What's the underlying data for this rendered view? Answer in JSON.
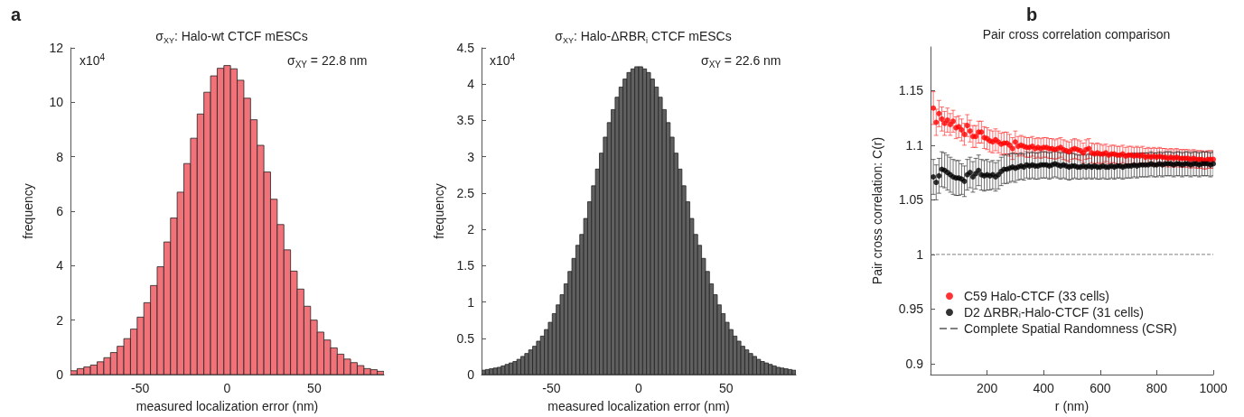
{
  "chart_data": [
    {
      "type": "histogram",
      "title": "σ$_{XY}$: Halo-wt CTCF mESCs",
      "xlabel": "measured localization error (nm)",
      "ylabel": "frequency",
      "color": "#f2727a",
      "annotations": [
        "a",
        "x10$^{4}$",
        "σ$_{XY}$ = 22.8 nm"
      ],
      "bins": [
        -90,
        -86.17,
        -82.34,
        -78.51,
        -74.68,
        -70.85,
        -67.02,
        -63.19,
        -59.36,
        -55.53,
        -51.7,
        -47.87,
        -44.04,
        -40.21,
        -36.38,
        -32.55,
        -28.72,
        -24.89,
        -21.06,
        -17.23,
        -13.4,
        -9.57,
        -5.74,
        -1.91,
        1.91,
        5.74,
        9.57,
        13.4,
        17.23,
        21.06,
        24.89,
        28.72,
        32.55,
        36.38,
        40.21,
        44.04,
        47.87,
        51.7,
        55.53,
        59.36,
        63.19,
        67.02,
        70.85,
        74.68,
        78.51,
        82.34,
        86.17,
        90
      ],
      "values": [
        0.14,
        0.22,
        0.28,
        0.35,
        0.47,
        0.62,
        0.81,
        1.04,
        1.32,
        1.67,
        2.11,
        2.64,
        3.27,
        3.96,
        4.87,
        5.75,
        6.7,
        7.75,
        8.68,
        9.57,
        10.37,
        10.97,
        11.25,
        11.35,
        11.23,
        10.81,
        10.15,
        9.36,
        8.42,
        7.44,
        6.44,
        5.51,
        4.58,
        3.8,
        3.14,
        2.51,
        2.0,
        1.56,
        1.27,
        0.98,
        0.75,
        0.57,
        0.44,
        0.33,
        0.22,
        0.18,
        0.12
      ],
      "xlim": [
        -90,
        90
      ],
      "xticks": [
        -50,
        0,
        50
      ],
      "ylim": [
        0,
        12
      ],
      "yticks": [
        0,
        2,
        4,
        6,
        8,
        10,
        12
      ],
      "grid": false
    },
    {
      "type": "histogram",
      "title": "σ$_{XY}$: Halo-ΔRBR$_{i}$ CTCF mESCs",
      "xlabel": "measured localization error (nm)",
      "ylabel": "frequency",
      "color": "#606060",
      "annotations": [
        "x10$^{4}$",
        "σ$_{XY}$ = 22.6 nm"
      ],
      "bins": [
        -90,
        -87.75,
        -85.5,
        -83.25,
        -81,
        -78.75,
        -76.5,
        -74.25,
        -72,
        -69.75,
        -67.5,
        -65.25,
        -63,
        -60.75,
        -58.5,
        -56.25,
        -54,
        -51.75,
        -49.5,
        -47.25,
        -45,
        -42.75,
        -40.5,
        -38.25,
        -36,
        -33.75,
        -31.5,
        -29.25,
        -27,
        -24.75,
        -22.5,
        -20.25,
        -18,
        -15.75,
        -13.5,
        -11.25,
        -9,
        -6.75,
        -4.5,
        -2.25,
        0,
        2.25,
        4.5,
        6.75,
        9,
        11.25,
        13.5,
        15.75,
        18,
        20.25,
        22.5,
        24.75,
        27,
        29.25,
        31.5,
        33.75,
        36,
        38.25,
        40.5,
        42.75,
        45,
        47.25,
        49.5,
        51.75,
        54,
        56.25,
        58.5,
        60.75,
        63,
        65.25,
        67.5,
        69.75,
        72,
        74.25,
        76.5,
        78.75,
        81,
        83.25,
        85.5,
        87.75,
        90
      ],
      "values": [
        0.06,
        0.07,
        0.08,
        0.09,
        0.1,
        0.12,
        0.14,
        0.16,
        0.18,
        0.21,
        0.25,
        0.29,
        0.34,
        0.39,
        0.46,
        0.53,
        0.62,
        0.72,
        0.84,
        0.96,
        1.1,
        1.25,
        1.42,
        1.6,
        1.78,
        1.93,
        2.15,
        2.38,
        2.6,
        2.83,
        3.05,
        3.27,
        3.47,
        3.65,
        3.82,
        3.96,
        4.07,
        4.16,
        4.21,
        4.24,
        4.24,
        4.21,
        4.16,
        4.07,
        3.96,
        3.82,
        3.65,
        3.47,
        3.27,
        3.05,
        2.83,
        2.6,
        2.38,
        2.15,
        1.93,
        1.78,
        1.6,
        1.42,
        1.25,
        1.1,
        0.96,
        0.84,
        0.72,
        0.62,
        0.53,
        0.46,
        0.39,
        0.34,
        0.29,
        0.25,
        0.21,
        0.18,
        0.16,
        0.14,
        0.12,
        0.1,
        0.09,
        0.08,
        0.07,
        0.06
      ],
      "xlim": [
        -90,
        90
      ],
      "xticks": [
        -50,
        0,
        50
      ],
      "ylim": [
        0,
        4.5
      ],
      "yticks": [
        0,
        0.5,
        1,
        1.5,
        2,
        2.5,
        3,
        3.5,
        4,
        4.5
      ],
      "grid": false
    },
    {
      "type": "scatter",
      "title": "Pair cross correlation comparison",
      "xlabel": "r (nm)",
      "ylabel": "Pair cross correlation: C(r)",
      "annotations": [
        "b"
      ],
      "marker": "circle",
      "legend": "bottom left",
      "grid": false,
      "x": [
        10,
        20,
        30,
        40,
        50,
        60,
        70,
        80,
        90,
        100,
        110,
        120,
        130,
        140,
        150,
        160,
        170,
        180,
        190,
        200,
        210,
        220,
        230,
        240,
        250,
        260,
        270,
        280,
        290,
        300,
        310,
        320,
        330,
        340,
        350,
        360,
        370,
        380,
        390,
        400,
        410,
        420,
        430,
        440,
        450,
        460,
        470,
        480,
        490,
        500,
        510,
        520,
        530,
        540,
        550,
        560,
        570,
        580,
        590,
        600,
        610,
        620,
        630,
        640,
        650,
        660,
        670,
        680,
        690,
        700,
        710,
        720,
        730,
        740,
        750,
        760,
        770,
        780,
        790,
        800,
        810,
        820,
        830,
        840,
        850,
        860,
        870,
        880,
        890,
        900,
        910,
        920,
        930,
        940,
        950,
        960,
        970,
        980,
        990,
        1000
      ],
      "series": [
        {
          "name": "C59 Halo-CTCF (33 cells)",
          "color": "#ff0000",
          "values": [
            1.134,
            1.121,
            1.129,
            1.124,
            1.12,
            1.123,
            1.119,
            1.122,
            1.116,
            1.117,
            1.114,
            1.11,
            1.118,
            1.113,
            1.108,
            1.108,
            1.112,
            1.112,
            1.107,
            1.106,
            1.104,
            1.103,
            1.105,
            1.103,
            1.101,
            1.102,
            1.102,
            1.1,
            1.097,
            1.103,
            1.099,
            1.1,
            1.099,
            1.098,
            1.098,
            1.099,
            1.097,
            1.098,
            1.097,
            1.098,
            1.098,
            1.097,
            1.097,
            1.096,
            1.097,
            1.098,
            1.096,
            1.095,
            1.094,
            1.096,
            1.097,
            1.096,
            1.095,
            1.093,
            1.096,
            1.097,
            1.093,
            1.092,
            1.093,
            1.092,
            1.092,
            1.093,
            1.091,
            1.092,
            1.092,
            1.091,
            1.091,
            1.092,
            1.09,
            1.091,
            1.091,
            1.09,
            1.091,
            1.09,
            1.091,
            1.089,
            1.09,
            1.089,
            1.09,
            1.089,
            1.09,
            1.089,
            1.089,
            1.088,
            1.089,
            1.088,
            1.089,
            1.088,
            1.088,
            1.088,
            1.088,
            1.087,
            1.088,
            1.087,
            1.087,
            1.087,
            1.086,
            1.087,
            1.087,
            1.087
          ],
          "errors": [
            0.015,
            0.012,
            0.012,
            0.011,
            0.011,
            0.011,
            0.01,
            0.01,
            0.01,
            0.01,
            0.01,
            0.01,
            0.01,
            0.01,
            0.01,
            0.01,
            0.01,
            0.01,
            0.01,
            0.01,
            0.01,
            0.01,
            0.01,
            0.01,
            0.01,
            0.01,
            0.01,
            0.01,
            0.01,
            0.01,
            0.009,
            0.009,
            0.009,
            0.009,
            0.009,
            0.009,
            0.009,
            0.009,
            0.009,
            0.009,
            0.009,
            0.009,
            0.009,
            0.009,
            0.009,
            0.009,
            0.009,
            0.009,
            0.009,
            0.009,
            0.009,
            0.009,
            0.009,
            0.009,
            0.009,
            0.009,
            0.009,
            0.009,
            0.009,
            0.009,
            0.008,
            0.008,
            0.008,
            0.008,
            0.008,
            0.008,
            0.008,
            0.008,
            0.008,
            0.008,
            0.008,
            0.008,
            0.008,
            0.008,
            0.008,
            0.008,
            0.008,
            0.008,
            0.008,
            0.008,
            0.008,
            0.008,
            0.008,
            0.008,
            0.008,
            0.008,
            0.008,
            0.008,
            0.008,
            0.008,
            0.008,
            0.008,
            0.008,
            0.008,
            0.008,
            0.008,
            0.008,
            0.008,
            0.008,
            0.008
          ]
        },
        {
          "name": "D2 ΔRBRᵢ-Halo-CTCF (31 cells)",
          "color": "#000000",
          "values": [
            1.071,
            1.066,
            1.072,
            1.078,
            1.077,
            1.075,
            1.073,
            1.071,
            1.07,
            1.07,
            1.069,
            1.067,
            1.073,
            1.075,
            1.071,
            1.074,
            1.077,
            1.073,
            1.072,
            1.073,
            1.072,
            1.073,
            1.071,
            1.073,
            1.076,
            1.078,
            1.078,
            1.079,
            1.08,
            1.079,
            1.08,
            1.081,
            1.08,
            1.082,
            1.081,
            1.082,
            1.081,
            1.081,
            1.082,
            1.082,
            1.082,
            1.081,
            1.082,
            1.083,
            1.082,
            1.081,
            1.082,
            1.081,
            1.08,
            1.081,
            1.081,
            1.08,
            1.08,
            1.081,
            1.08,
            1.081,
            1.08,
            1.081,
            1.08,
            1.08,
            1.081,
            1.08,
            1.08,
            1.081,
            1.08,
            1.081,
            1.081,
            1.08,
            1.081,
            1.081,
            1.081,
            1.082,
            1.081,
            1.082,
            1.082,
            1.082,
            1.082,
            1.083,
            1.082,
            1.082,
            1.083,
            1.082,
            1.083,
            1.083,
            1.083,
            1.082,
            1.083,
            1.083,
            1.082,
            1.083,
            1.083,
            1.082,
            1.083,
            1.083,
            1.082,
            1.083,
            1.083,
            1.083,
            1.082,
            1.083
          ],
          "errors": [
            0.016,
            0.016,
            0.016,
            0.016,
            0.016,
            0.016,
            0.016,
            0.016,
            0.016,
            0.016,
            0.014,
            0.014,
            0.014,
            0.014,
            0.014,
            0.014,
            0.014,
            0.014,
            0.014,
            0.014,
            0.013,
            0.013,
            0.013,
            0.013,
            0.013,
            0.013,
            0.013,
            0.013,
            0.013,
            0.013,
            0.012,
            0.012,
            0.012,
            0.012,
            0.012,
            0.012,
            0.012,
            0.012,
            0.012,
            0.012,
            0.012,
            0.012,
            0.012,
            0.012,
            0.012,
            0.012,
            0.012,
            0.012,
            0.012,
            0.012,
            0.011,
            0.011,
            0.011,
            0.011,
            0.011,
            0.011,
            0.011,
            0.011,
            0.011,
            0.011,
            0.011,
            0.011,
            0.011,
            0.011,
            0.011,
            0.011,
            0.011,
            0.011,
            0.011,
            0.011,
            0.011,
            0.011,
            0.011,
            0.011,
            0.011,
            0.011,
            0.011,
            0.011,
            0.011,
            0.011,
            0.011,
            0.011,
            0.011,
            0.011,
            0.011,
            0.011,
            0.011,
            0.011,
            0.011,
            0.011,
            0.011,
            0.011,
            0.011,
            0.011,
            0.011,
            0.011,
            0.011,
            0.011,
            0.011,
            0.011
          ]
        }
      ],
      "ref_lines": [
        {
          "axis": "y",
          "value": 1,
          "label": "Complete Spatial Randomness (CSR)",
          "color": "#808080",
          "line_style": "dashed"
        }
      ],
      "xlim": [
        0,
        1000
      ],
      "xticks": [
        200,
        400,
        600,
        800,
        1000
      ],
      "ylim": [
        0.89,
        1.19
      ],
      "yticks": [
        0.9,
        0.95,
        1,
        1.05,
        1.1,
        1.15
      ]
    }
  ]
}
